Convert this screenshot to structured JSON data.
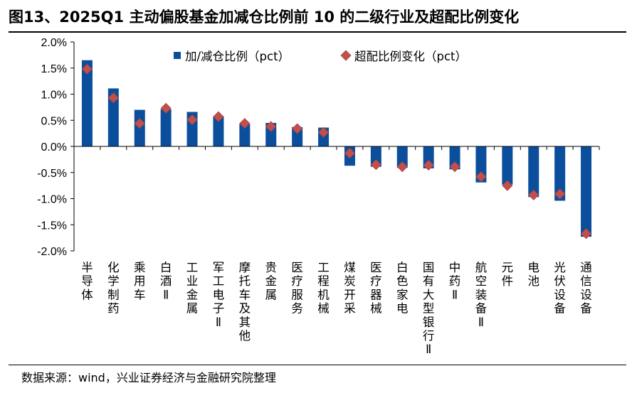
{
  "header": {
    "title": "图13、2025Q1 主动偏股基金加减仓比例前 10 的二级行业及超配比例变化"
  },
  "footer": {
    "source": "数据来源：wind，兴业证券经济与金融研究院整理"
  },
  "colors": {
    "bar": "#0b4f9c",
    "marker": "#c0504d",
    "axis": "#000000"
  },
  "chart_data": {
    "type": "bar",
    "title": "图13、2025Q1 主动偏股基金加减仓比例前 10 的二级行业及超配比例变化",
    "xlabel": "",
    "ylabel": "",
    "ylim": [
      -2.0,
      2.0
    ],
    "ytick_step": 0.5,
    "ytick_format": "percent_1dp",
    "ytick_labels": [
      "2.0%",
      "1.5%",
      "1.0%",
      "0.5%",
      "0.0%",
      "-0.5%",
      "-1.0%",
      "-1.5%",
      "-2.0%"
    ],
    "grid": false,
    "legend_position": "top",
    "categories": [
      "半导体",
      "化学制药",
      "乘用车",
      "白酒Ⅱ",
      "工业金属",
      "军工电子Ⅱ",
      "摩托车及其他",
      "贵金属",
      "医疗服务",
      "工程机械",
      "煤炭开采",
      "医疗器械",
      "白色家电",
      "国有大型银行Ⅱ",
      "中药Ⅱ",
      "航空装备Ⅱ",
      "元件",
      "电池",
      "光伏设备",
      "通信设备"
    ],
    "series": [
      {
        "name": "加/减仓比例（pct）",
        "kind": "bar",
        "values": [
          1.65,
          1.11,
          0.7,
          0.71,
          0.66,
          0.58,
          0.43,
          0.45,
          0.37,
          0.36,
          -0.37,
          -0.39,
          -0.41,
          -0.42,
          -0.44,
          -0.69,
          -0.73,
          -0.97,
          -1.04,
          -1.73
        ]
      },
      {
        "name": "超配比例变化（pct）",
        "kind": "marker",
        "values": [
          1.48,
          0.93,
          0.44,
          0.73,
          0.51,
          0.57,
          0.44,
          0.38,
          0.34,
          0.27,
          -0.13,
          -0.35,
          -0.39,
          -0.36,
          -0.39,
          -0.58,
          -0.75,
          -0.93,
          -0.91,
          -1.67
        ]
      }
    ]
  }
}
